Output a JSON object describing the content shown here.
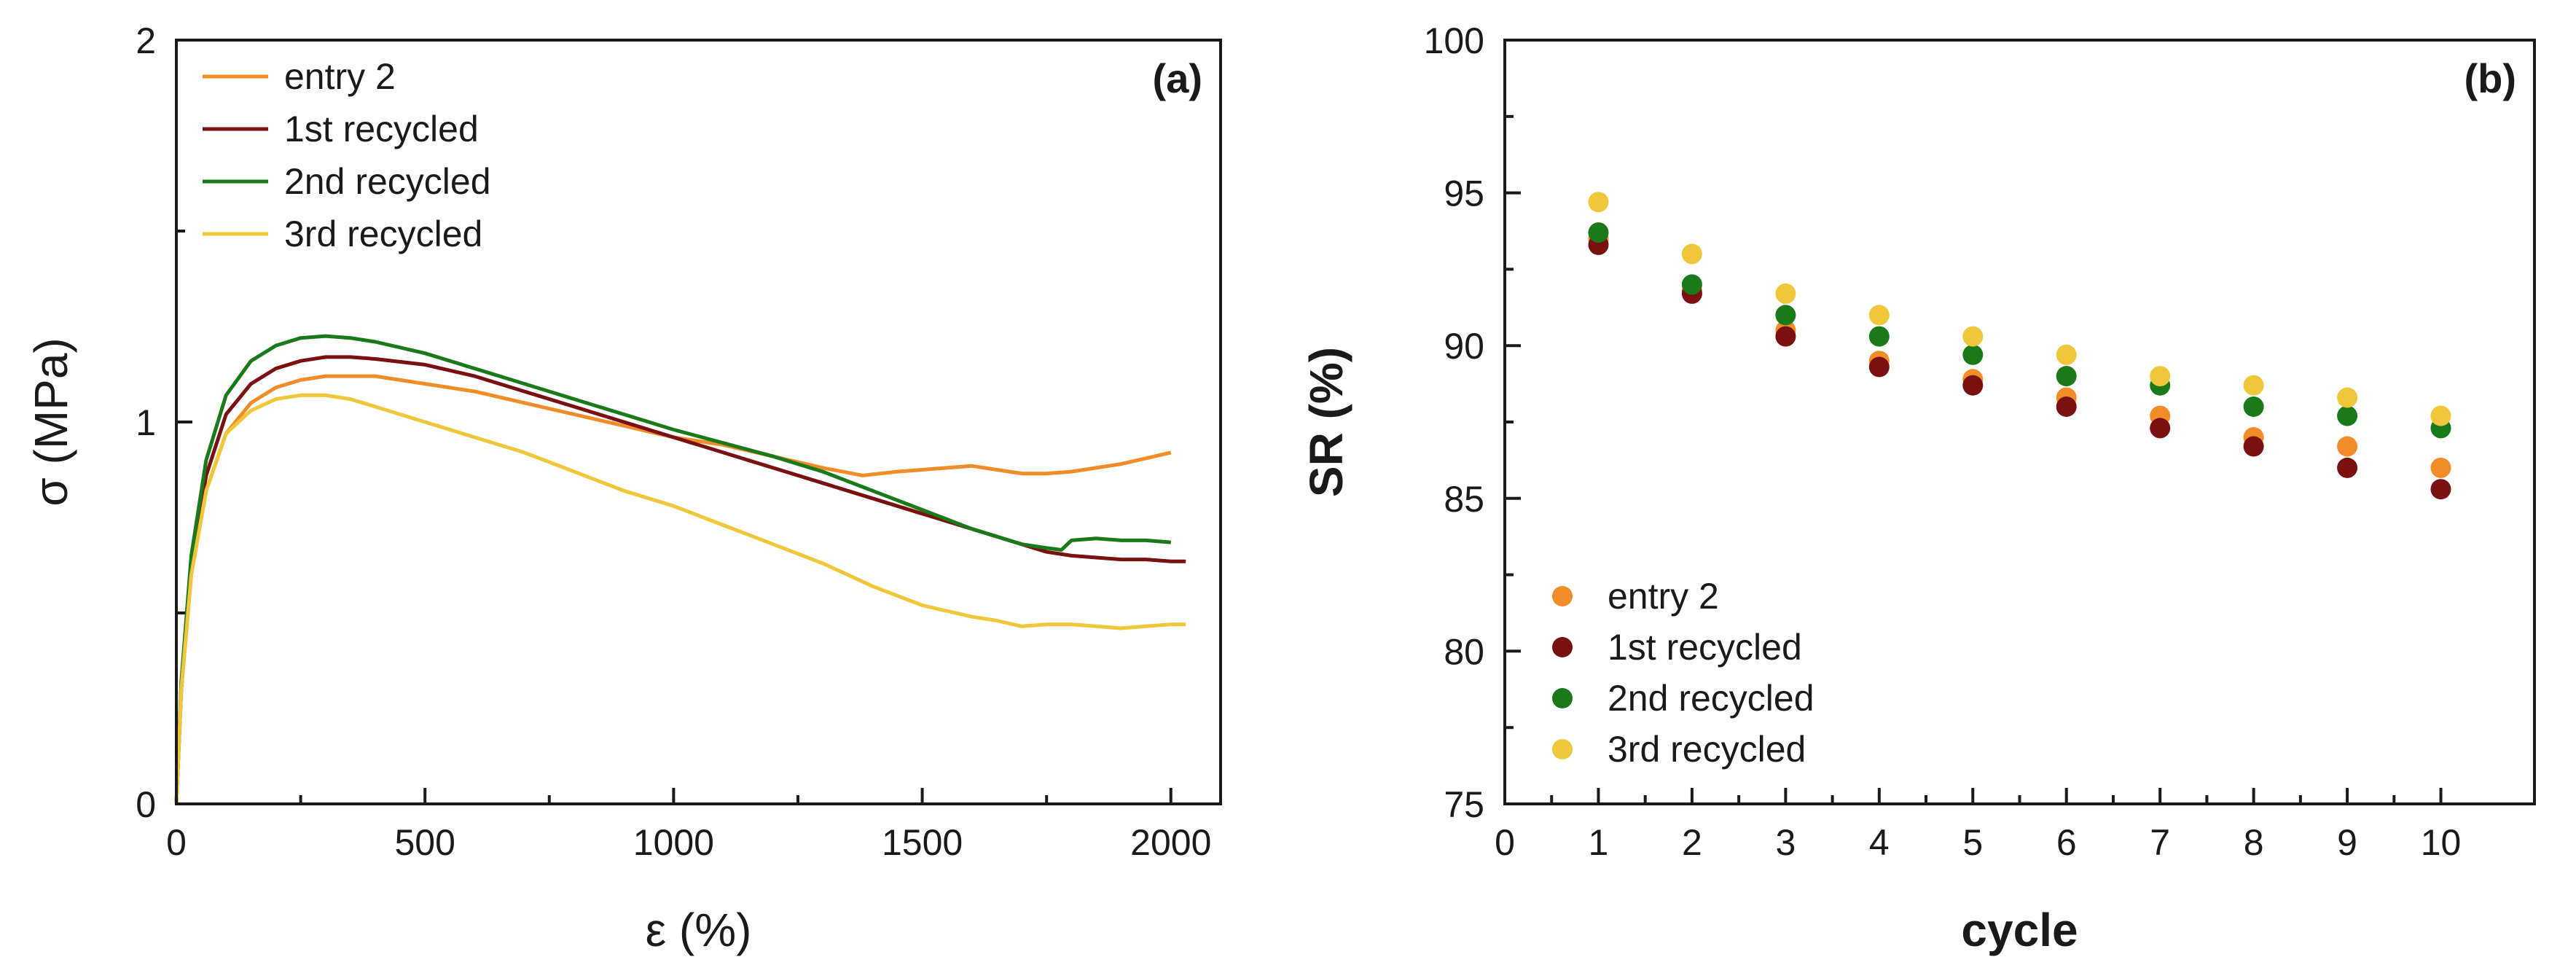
{
  "chart_data": [
    {
      "type": "line",
      "panel_label": "(a)",
      "xlabel": "ε (%)",
      "ylabel": "σ (MPa)",
      "xlim": [
        0,
        2100
      ],
      "ylim": [
        0,
        2
      ],
      "xticks": [
        0,
        500,
        1000,
        1500,
        2000
      ],
      "yticks": [
        0,
        1,
        2
      ],
      "xtick_labels": [
        "0",
        "500",
        "1000",
        "1500",
        "2000"
      ],
      "ytick_labels": [
        "0",
        "1",
        "2"
      ],
      "legend_position": "top-left",
      "series": [
        {
          "name": "entry 2",
          "color": "#F28C28",
          "x": [
            0,
            10,
            30,
            60,
            100,
            150,
            200,
            250,
            300,
            350,
            400,
            500,
            600,
            700,
            800,
            900,
            1000,
            1100,
            1200,
            1300,
            1380,
            1450,
            1500,
            1550,
            1600,
            1650,
            1700,
            1750,
            1800,
            1850,
            1900,
            1950,
            2000
          ],
          "y": [
            0,
            0.3,
            0.6,
            0.82,
            0.97,
            1.05,
            1.09,
            1.11,
            1.12,
            1.12,
            1.12,
            1.1,
            1.08,
            1.05,
            1.02,
            0.99,
            0.96,
            0.94,
            0.91,
            0.88,
            0.86,
            0.87,
            0.875,
            0.88,
            0.885,
            0.875,
            0.865,
            0.865,
            0.87,
            0.88,
            0.89,
            0.905,
            0.92
          ]
        },
        {
          "name": "1st recycled",
          "color": "#7A1010",
          "x": [
            0,
            10,
            30,
            60,
            100,
            150,
            200,
            250,
            300,
            350,
            400,
            500,
            600,
            700,
            800,
            900,
            1000,
            1100,
            1200,
            1300,
            1400,
            1500,
            1600,
            1700,
            1750,
            1800,
            1850,
            1900,
            1950,
            2000,
            2030
          ],
          "y": [
            0,
            0.3,
            0.62,
            0.86,
            1.02,
            1.1,
            1.14,
            1.16,
            1.17,
            1.17,
            1.165,
            1.15,
            1.12,
            1.08,
            1.04,
            1.0,
            0.96,
            0.92,
            0.88,
            0.84,
            0.8,
            0.76,
            0.72,
            0.68,
            0.66,
            0.65,
            0.645,
            0.64,
            0.64,
            0.635,
            0.635
          ]
        },
        {
          "name": "2nd recycled",
          "color": "#1A7A1A",
          "x": [
            0,
            10,
            30,
            60,
            100,
            150,
            200,
            250,
            300,
            350,
            400,
            500,
            600,
            700,
            800,
            900,
            1000,
            1100,
            1200,
            1300,
            1400,
            1500,
            1600,
            1700,
            1750,
            1780,
            1800,
            1850,
            1900,
            1950,
            2000
          ],
          "y": [
            0,
            0.32,
            0.65,
            0.9,
            1.07,
            1.16,
            1.2,
            1.22,
            1.225,
            1.22,
            1.21,
            1.18,
            1.14,
            1.1,
            1.06,
            1.02,
            0.98,
            0.945,
            0.91,
            0.87,
            0.82,
            0.77,
            0.72,
            0.68,
            0.67,
            0.665,
            0.69,
            0.695,
            0.69,
            0.69,
            0.685
          ]
        },
        {
          "name": "3rd recycled",
          "color": "#F0C63A",
          "x": [
            0,
            10,
            30,
            60,
            100,
            150,
            200,
            250,
            300,
            350,
            400,
            500,
            600,
            700,
            800,
            900,
            1000,
            1100,
            1200,
            1300,
            1400,
            1500,
            1600,
            1650,
            1700,
            1750,
            1800,
            1850,
            1900,
            1950,
            2000,
            2030
          ],
          "y": [
            0,
            0.3,
            0.6,
            0.82,
            0.97,
            1.03,
            1.06,
            1.07,
            1.07,
            1.06,
            1.04,
            1.0,
            0.96,
            0.92,
            0.87,
            0.82,
            0.78,
            0.73,
            0.68,
            0.63,
            0.57,
            0.52,
            0.49,
            0.48,
            0.465,
            0.47,
            0.47,
            0.465,
            0.46,
            0.465,
            0.47,
            0.47
          ]
        }
      ]
    },
    {
      "type": "scatter",
      "panel_label": "(b)",
      "xlabel": "cycle",
      "ylabel": "SR (%)",
      "xlim": [
        0,
        11
      ],
      "ylim": [
        75,
        100
      ],
      "xticks": [
        0,
        1,
        2,
        3,
        4,
        5,
        6,
        7,
        8,
        9,
        10
      ],
      "yticks": [
        75,
        80,
        85,
        90,
        95,
        100
      ],
      "xtick_labels": [
        "0",
        "1",
        "2",
        "3",
        "4",
        "5",
        "6",
        "7",
        "8",
        "9",
        "10"
      ],
      "ytick_labels": [
        "75",
        "80",
        "85",
        "90",
        "95",
        "100"
      ],
      "legend_position": "bottom-left",
      "x": [
        1,
        2,
        3,
        4,
        5,
        6,
        7,
        8,
        9,
        10
      ],
      "series": [
        {
          "name": "entry 2",
          "color": "#F28C28",
          "values": [
            93.5,
            91.8,
            90.5,
            89.5,
            88.9,
            88.3,
            87.7,
            87.0,
            86.7,
            86.0
          ]
        },
        {
          "name": "1st recycled",
          "color": "#7A1010",
          "values": [
            93.3,
            91.7,
            90.3,
            89.3,
            88.7,
            88.0,
            87.3,
            86.7,
            86.0,
            85.3
          ]
        },
        {
          "name": "2nd recycled",
          "color": "#1A7A1A",
          "values": [
            93.7,
            92.0,
            91.0,
            90.3,
            89.7,
            89.0,
            88.7,
            88.0,
            87.7,
            87.3
          ]
        },
        {
          "name": "3rd recycled",
          "color": "#F0C63A",
          "values": [
            94.7,
            93.0,
            91.7,
            91.0,
            90.3,
            89.7,
            89.0,
            88.7,
            88.3,
            87.7
          ]
        }
      ]
    }
  ]
}
